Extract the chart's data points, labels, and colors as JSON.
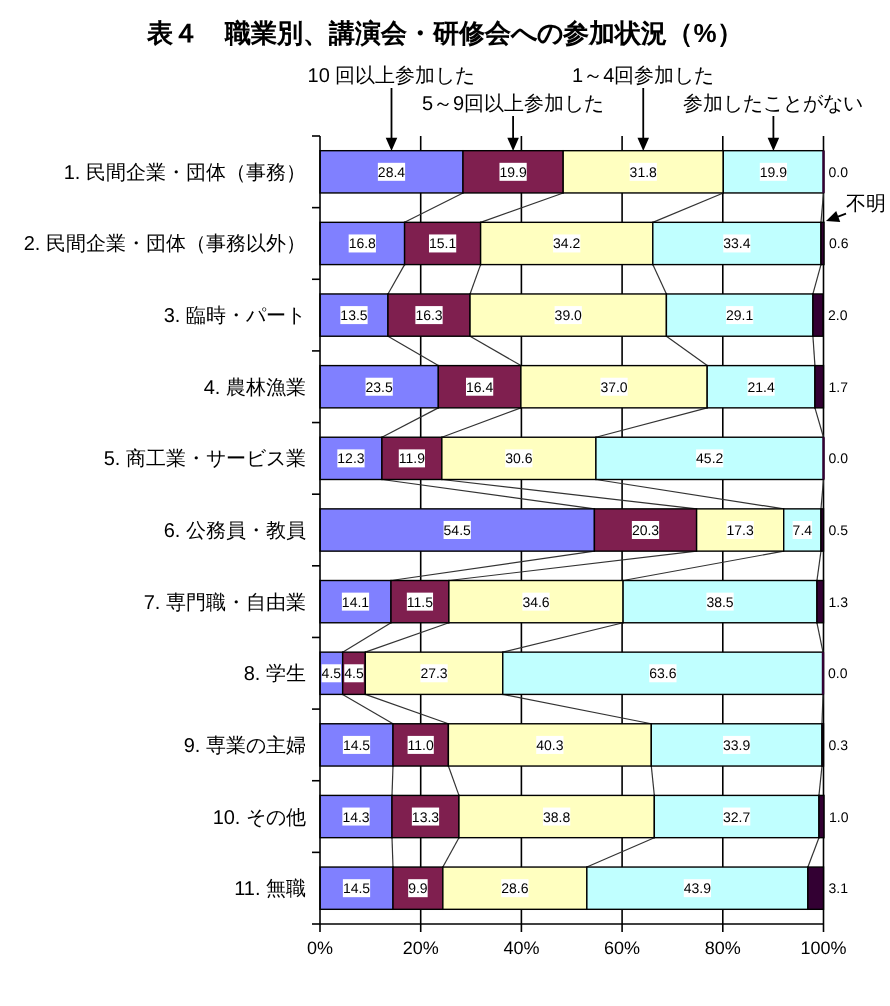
{
  "chart_data": {
    "type": "bar",
    "orientation": "horizontal",
    "stacked": true,
    "title": "表４　職業別、講演会・研修会への参加状況（%）",
    "categories": [
      "1. 民間企業・団体（事務）",
      "2. 民間企業・団体（事務以外）",
      "3. 臨時・パート",
      "4. 農林漁業",
      "5. 商工業・サービス業",
      "6. 公務員・教員",
      "7. 専門職・自由業",
      "8. 学生",
      "9. 専業の主婦",
      "10. その他",
      "11. 無職"
    ],
    "series": [
      {
        "name": "10 回以上参加した",
        "color": "#8080ff",
        "values": [
          28.4,
          16.8,
          13.5,
          23.5,
          12.3,
          54.5,
          14.1,
          4.5,
          14.5,
          14.3,
          14.5
        ],
        "value_labels": [
          "28.4",
          "16.8",
          "13.5",
          "23.5",
          "12.3",
          "54.5",
          "14.1",
          "4.5",
          "14.5",
          "14.3",
          "14.5"
        ]
      },
      {
        "name": "5～9回以上参加した",
        "color": "#7f1f4f",
        "values": [
          19.9,
          15.1,
          16.3,
          16.4,
          11.9,
          20.3,
          11.5,
          4.5,
          11.0,
          13.3,
          9.9
        ],
        "value_labels": [
          "19.9",
          "15.1",
          "16.3",
          "16.4",
          "11.9",
          "20.3",
          "11.5",
          "4.5",
          "11.0",
          "13.3",
          "9.9"
        ]
      },
      {
        "name": "1～4回参加した",
        "color": "#ffffc0",
        "values": [
          31.8,
          34.2,
          39.0,
          37.0,
          30.6,
          17.3,
          34.6,
          27.3,
          40.3,
          38.8,
          28.6
        ],
        "value_labels": [
          "31.8",
          "34.2",
          "39.0",
          "37.0",
          "30.6",
          "17.3",
          "34.6",
          "27.3",
          "40.3",
          "38.8",
          "28.6"
        ]
      },
      {
        "name": "参加したことがない",
        "color": "#c0ffff",
        "values": [
          19.9,
          33.4,
          29.1,
          21.4,
          45.2,
          7.4,
          38.5,
          63.6,
          33.9,
          32.7,
          43.9
        ],
        "value_labels": [
          "19.9",
          "33.4",
          "29.1",
          "21.4",
          "45.2",
          "7.4",
          "38.5",
          "63.6",
          "33.9",
          "32.7",
          "43.9"
        ]
      },
      {
        "name": "不明",
        "color": "#330033",
        "values": [
          0.0,
          0.6,
          2.0,
          1.7,
          0.0,
          0.5,
          1.3,
          0.0,
          0.3,
          1.0,
          3.1
        ],
        "value_labels": [
          "0.0",
          "0.6",
          "2.0",
          "1.7",
          "0.0",
          "0.5",
          "1.3",
          "0.0",
          "0.3",
          "1.0",
          "3.1"
        ]
      }
    ],
    "xlim": [
      0,
      100.1
    ],
    "xticks": [
      {
        "value": 0,
        "label": "0%"
      },
      {
        "value": 20,
        "label": "20%"
      },
      {
        "value": 40,
        "label": "40%"
      },
      {
        "value": 60,
        "label": "60%"
      },
      {
        "value": 80,
        "label": "80%"
      },
      {
        "value": 100,
        "label": "100%"
      }
    ],
    "grid": "x",
    "legend": "top"
  }
}
